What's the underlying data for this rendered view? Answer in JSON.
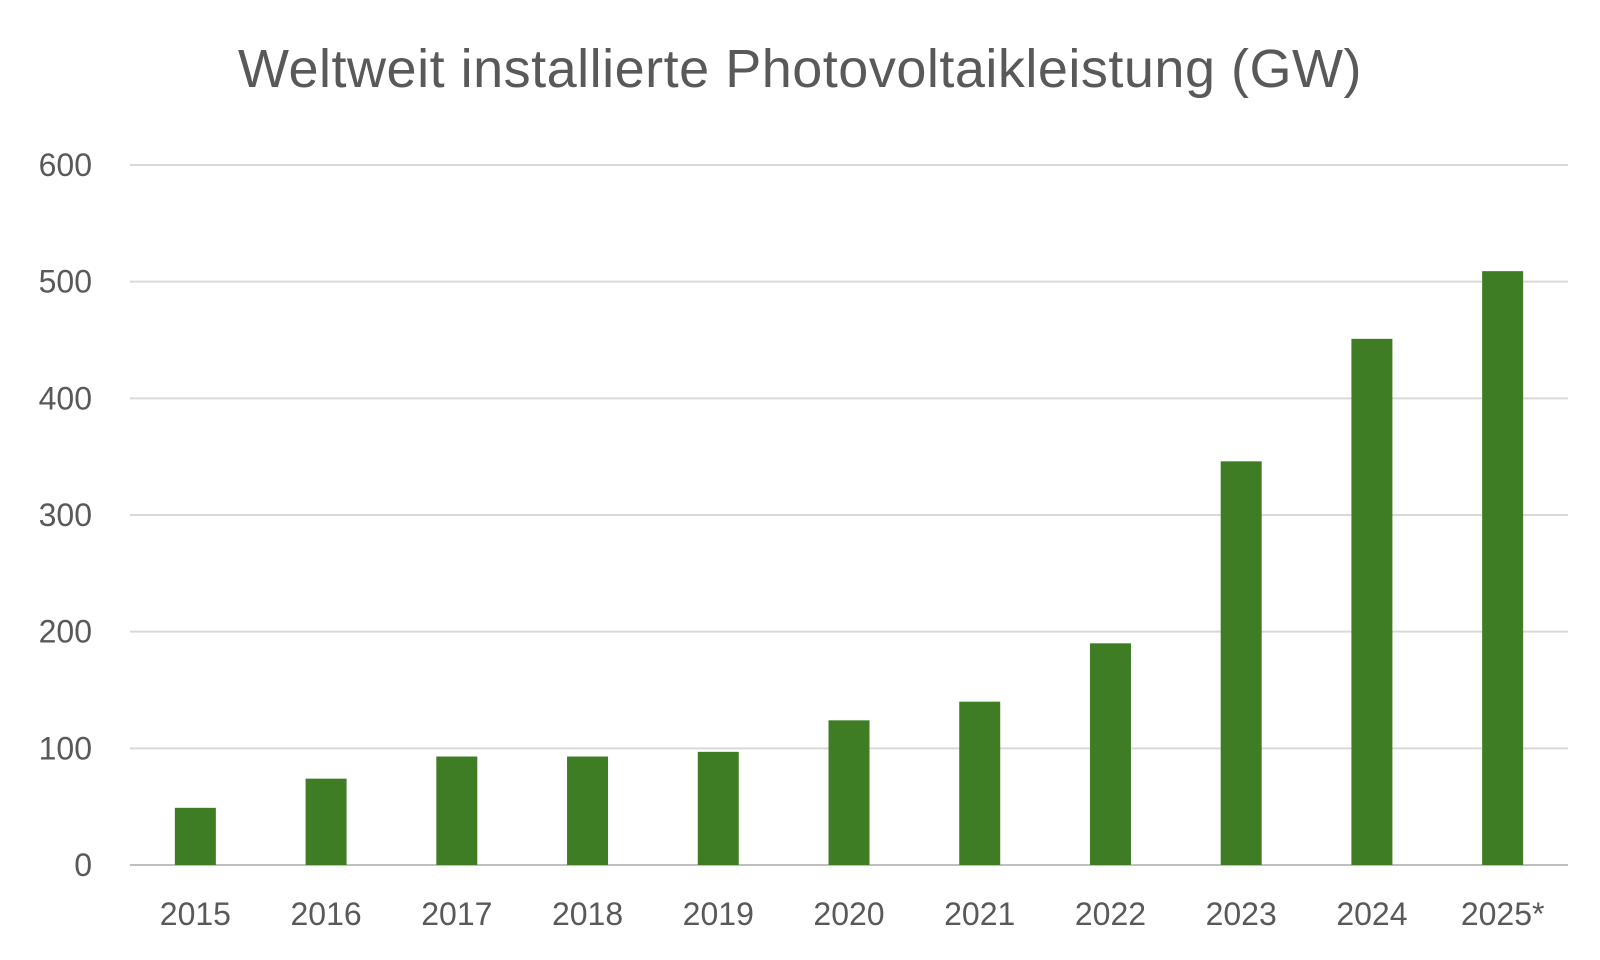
{
  "chart_data": {
    "type": "bar",
    "title": "Weltweit installierte Photovoltaikleistung (GW)",
    "xlabel": "",
    "ylabel": "",
    "categories": [
      "2015",
      "2016",
      "2017",
      "2018",
      "2019",
      "2020",
      "2021",
      "2022",
      "2023",
      "2024",
      "2025*"
    ],
    "values": [
      49,
      74,
      93,
      93,
      97,
      124,
      140,
      190,
      346,
      451,
      509
    ],
    "ylim": [
      0,
      600
    ],
    "yticks": [
      0,
      100,
      200,
      300,
      400,
      500,
      600
    ],
    "grid": true,
    "legend": "none",
    "bar_color": "#3f7d25"
  }
}
